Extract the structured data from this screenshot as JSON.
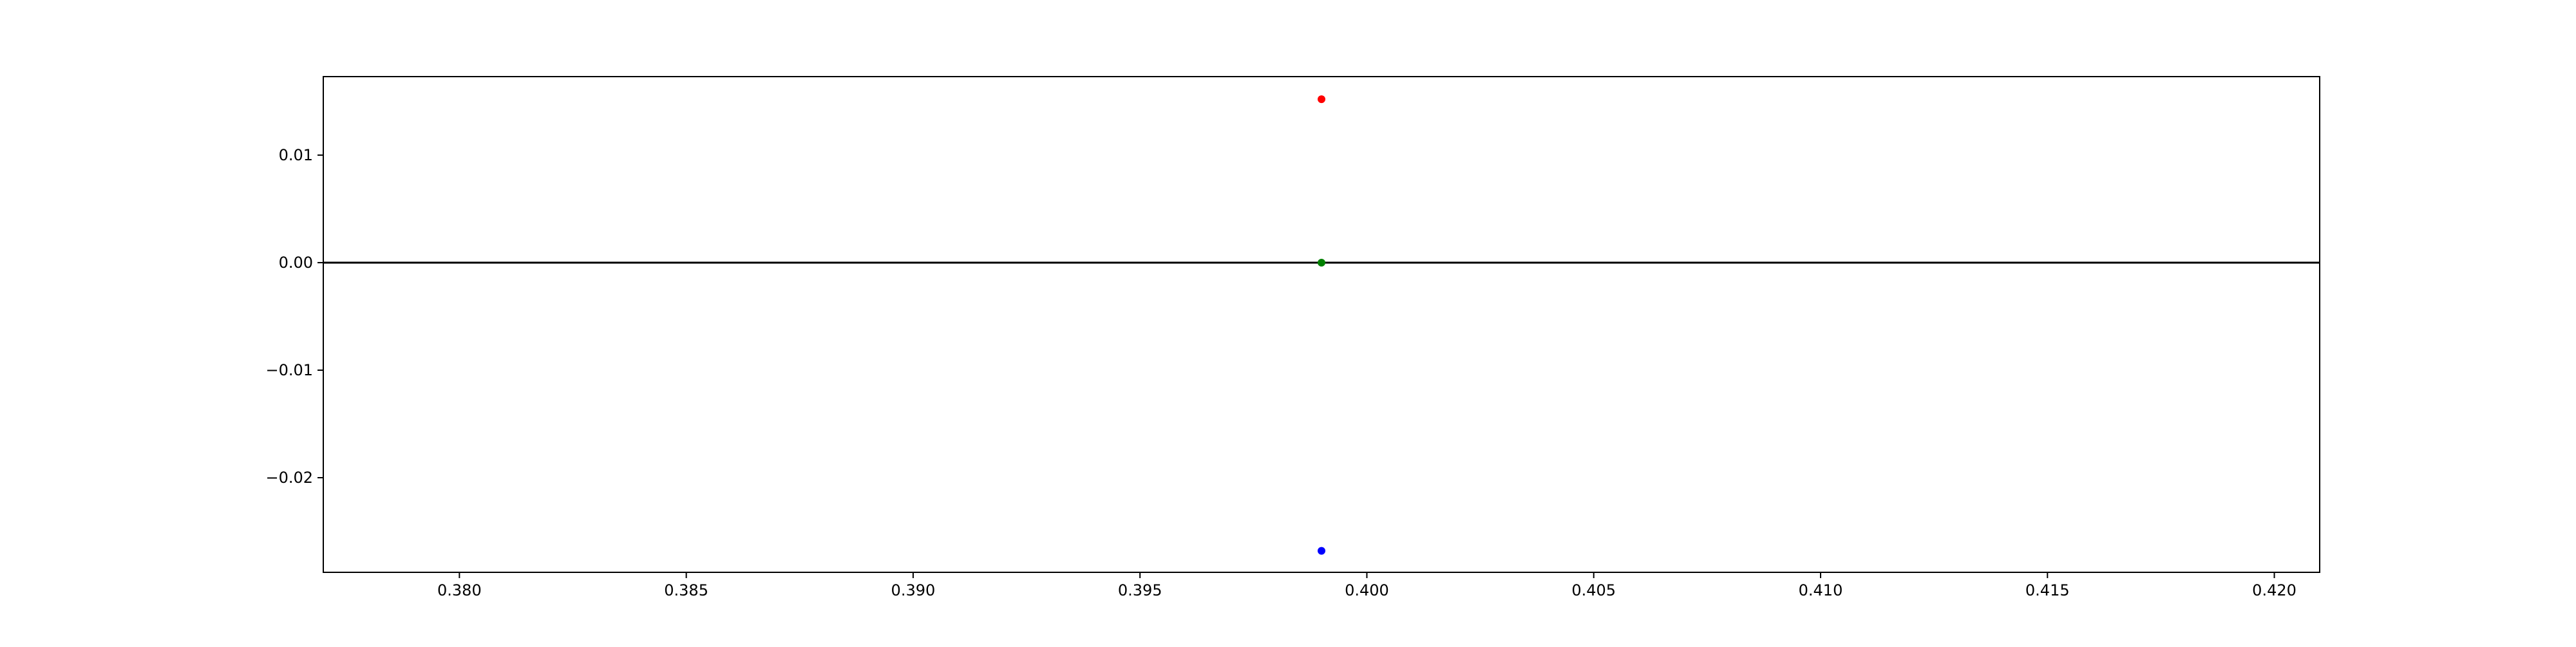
{
  "chart_data": {
    "type": "scatter",
    "title": "",
    "xlabel": "",
    "ylabel": "",
    "xlim": [
      0.377,
      0.421
    ],
    "ylim": [
      -0.0288,
      0.0173
    ],
    "x_ticks": [
      0.38,
      0.385,
      0.39,
      0.395,
      0.4,
      0.405,
      0.41,
      0.415,
      0.42
    ],
    "x_tick_labels": [
      "0.380",
      "0.385",
      "0.390",
      "0.395",
      "0.400",
      "0.405",
      "0.410",
      "0.415",
      "0.420"
    ],
    "y_ticks": [
      0.01,
      0.0,
      -0.01,
      -0.02
    ],
    "y_tick_labels": [
      "0.01",
      "0.00",
      "−0.01",
      "−0.02"
    ],
    "grid": false,
    "reference_line": {
      "y": 0.0,
      "color": "#000000"
    },
    "points": [
      {
        "x": 0.399,
        "y": 0.0152,
        "color": "#ff0000"
      },
      {
        "x": 0.399,
        "y": 0.0,
        "color": "#008000"
      },
      {
        "x": 0.399,
        "y": -0.0268,
        "color": "#0000ff"
      }
    ]
  }
}
